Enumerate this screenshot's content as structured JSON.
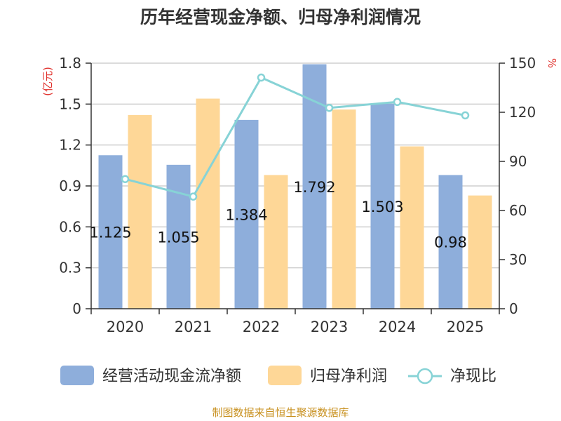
{
  "chart_data": {
    "type": "bar",
    "title": "历年经营现金净额、归母净利润情况",
    "categories": [
      "2020",
      "2021",
      "2022",
      "2023",
      "2024",
      "2025"
    ],
    "series": [
      {
        "name": "经营活动现金流净额",
        "axis": "left",
        "kind": "bar",
        "color": "#8eaedb",
        "values": [
          1.125,
          1.055,
          1.384,
          1.792,
          1.503,
          0.98
        ],
        "labels": [
          "1.125",
          "1.055",
          "1.384",
          "1.792",
          "1.503",
          "0.98"
        ]
      },
      {
        "name": "归母净利润",
        "axis": "left",
        "kind": "bar",
        "color": "#fed797",
        "values": [
          1.42,
          1.54,
          0.98,
          1.46,
          1.19,
          0.83
        ]
      },
      {
        "name": "净现比",
        "axis": "right",
        "kind": "line",
        "color": "#87d3d6",
        "values": [
          79.2,
          68.5,
          141.2,
          122.7,
          126.3,
          118.1
        ]
      }
    ],
    "ylabel_left": "(亿元)",
    "ylabel_right": "%",
    "ylim_left": [
      0,
      1.8
    ],
    "ylim_right": [
      0,
      150
    ],
    "yticks_left": [
      "0",
      "0.3",
      "0.6",
      "0.9",
      "1.2",
      "1.5",
      "1.8"
    ],
    "yticks_right": [
      "0",
      "30",
      "60",
      "90",
      "120",
      "150"
    ],
    "grid": true,
    "legend_position": "bottom"
  },
  "source_text": "制图数据来自恒生聚源数据库"
}
